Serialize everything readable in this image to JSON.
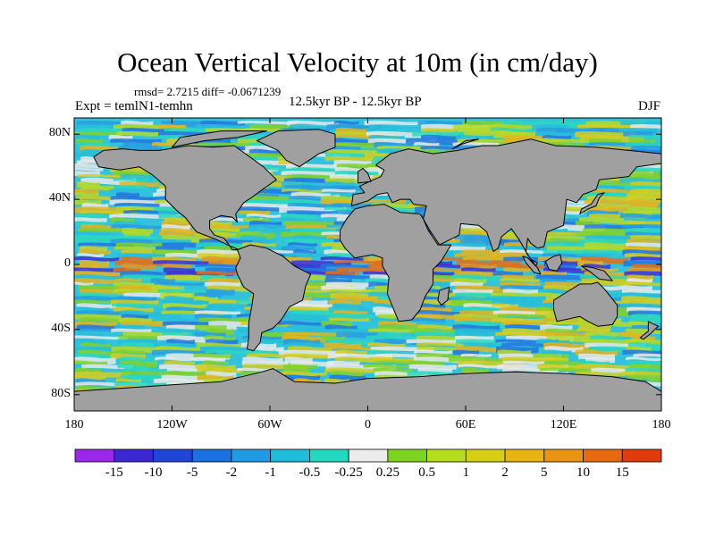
{
  "title": "Ocean Vertical Velocity at 10m (in cm/day)",
  "stats_line": "rmsd= 2.7215 diff= -0.0671239",
  "experiment_line": "Expt = temlN1-temhn",
  "period_line": "12.5kyr BP - 12.5kyr BP",
  "season_label": "DJF",
  "map": {
    "projection": "cylindrical equidistant",
    "lon_range": [
      -180,
      180
    ],
    "lat_range": [
      -90,
      90
    ],
    "land_color": "#a0a0a0",
    "coastline_color": "#000000",
    "lat_ticks": [
      {
        "value": 80,
        "label": "80N"
      },
      {
        "value": 40,
        "label": "40N"
      },
      {
        "value": 0,
        "label": "0"
      },
      {
        "value": -40,
        "label": "40S"
      },
      {
        "value": -80,
        "label": "80S"
      }
    ],
    "lon_ticks": [
      {
        "value": -180,
        "label": "180"
      },
      {
        "value": -120,
        "label": "120W"
      },
      {
        "value": -60,
        "label": "60W"
      },
      {
        "value": 0,
        "label": "0"
      },
      {
        "value": 60,
        "label": "60E"
      },
      {
        "value": 120,
        "label": "120E"
      },
      {
        "value": 180,
        "label": "180"
      }
    ]
  },
  "colorbar": {
    "colors": [
      "#9b26e8",
      "#3b28d3",
      "#1f45d9",
      "#1a72e2",
      "#1f9be4",
      "#1ebedb",
      "#22d9bf",
      "#ececec",
      "#7ed321",
      "#b6dc1e",
      "#d6cf15",
      "#e7b414",
      "#e99412",
      "#e76a10",
      "#e03a0d"
    ],
    "labels": [
      "-15",
      "-10",
      "-5",
      "-2",
      "-1",
      "-0.5",
      "-0.25",
      "0.25",
      "0.5",
      "1",
      "2",
      "5",
      "10",
      "15"
    ]
  }
}
